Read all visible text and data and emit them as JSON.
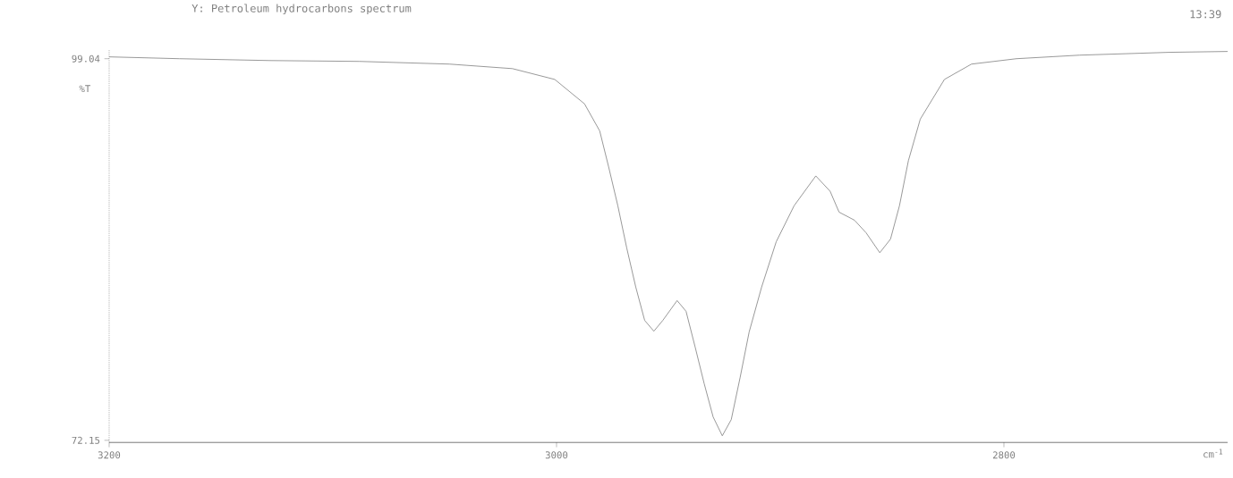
{
  "chart_data": {
    "type": "line",
    "title": "Y: Petroleum hydrocarbons spectrum",
    "xlabel": "cm$^{-1}$",
    "ylabel": "%T",
    "annotations": [
      "13:39"
    ],
    "x": [
      3200,
      3168.6,
      3128.4,
      3088.1,
      3047.9,
      3019.7,
      3000.8,
      2987.5,
      2980.7,
      2976.7,
      2972.6,
      2968.6,
      2964.6,
      2960.6,
      2956.5,
      2952.5,
      2946.1,
      2942.1,
      2938.0,
      2934.0,
      2930.0,
      2925.9,
      2921.9,
      2917.9,
      2913.9,
      2908.3,
      2901.8,
      2893.8,
      2884.1,
      2877.7,
      2873.7,
      2866.8,
      2861.6,
      2855.5,
      2850.7,
      2846.7,
      2842.7,
      2837.4,
      2826.6,
      2814.5,
      2794.4,
      2766.2,
      2726.0,
      2700
    ],
    "series": [
      {
        "color": "#7f7f7f",
        "values": [
          99.17,
          99.04,
          98.91,
          98.85,
          98.66,
          98.34,
          97.58,
          95.86,
          93.95,
          91.41,
          88.68,
          85.69,
          82.96,
          80.6,
          79.84,
          80.6,
          82.0,
          81.24,
          78.7,
          76.15,
          73.8,
          72.47,
          73.61,
          76.6,
          79.78,
          82.96,
          86.14,
          88.68,
          90.78,
          89.7,
          88.23,
          87.66,
          86.77,
          85.37,
          86.33,
          88.68,
          91.86,
          94.78,
          97.58,
          98.66,
          99.04,
          99.29,
          99.49,
          99.55
        ]
      }
    ],
    "xlim": [
      3200,
      2700
    ],
    "xticks": [
      3200,
      3000,
      2800
    ],
    "ylim": [
      72.0,
      99.7
    ],
    "yticks": [
      72.15,
      99.04
    ],
    "grid": false,
    "marker": "none",
    "line_style": "solid"
  }
}
